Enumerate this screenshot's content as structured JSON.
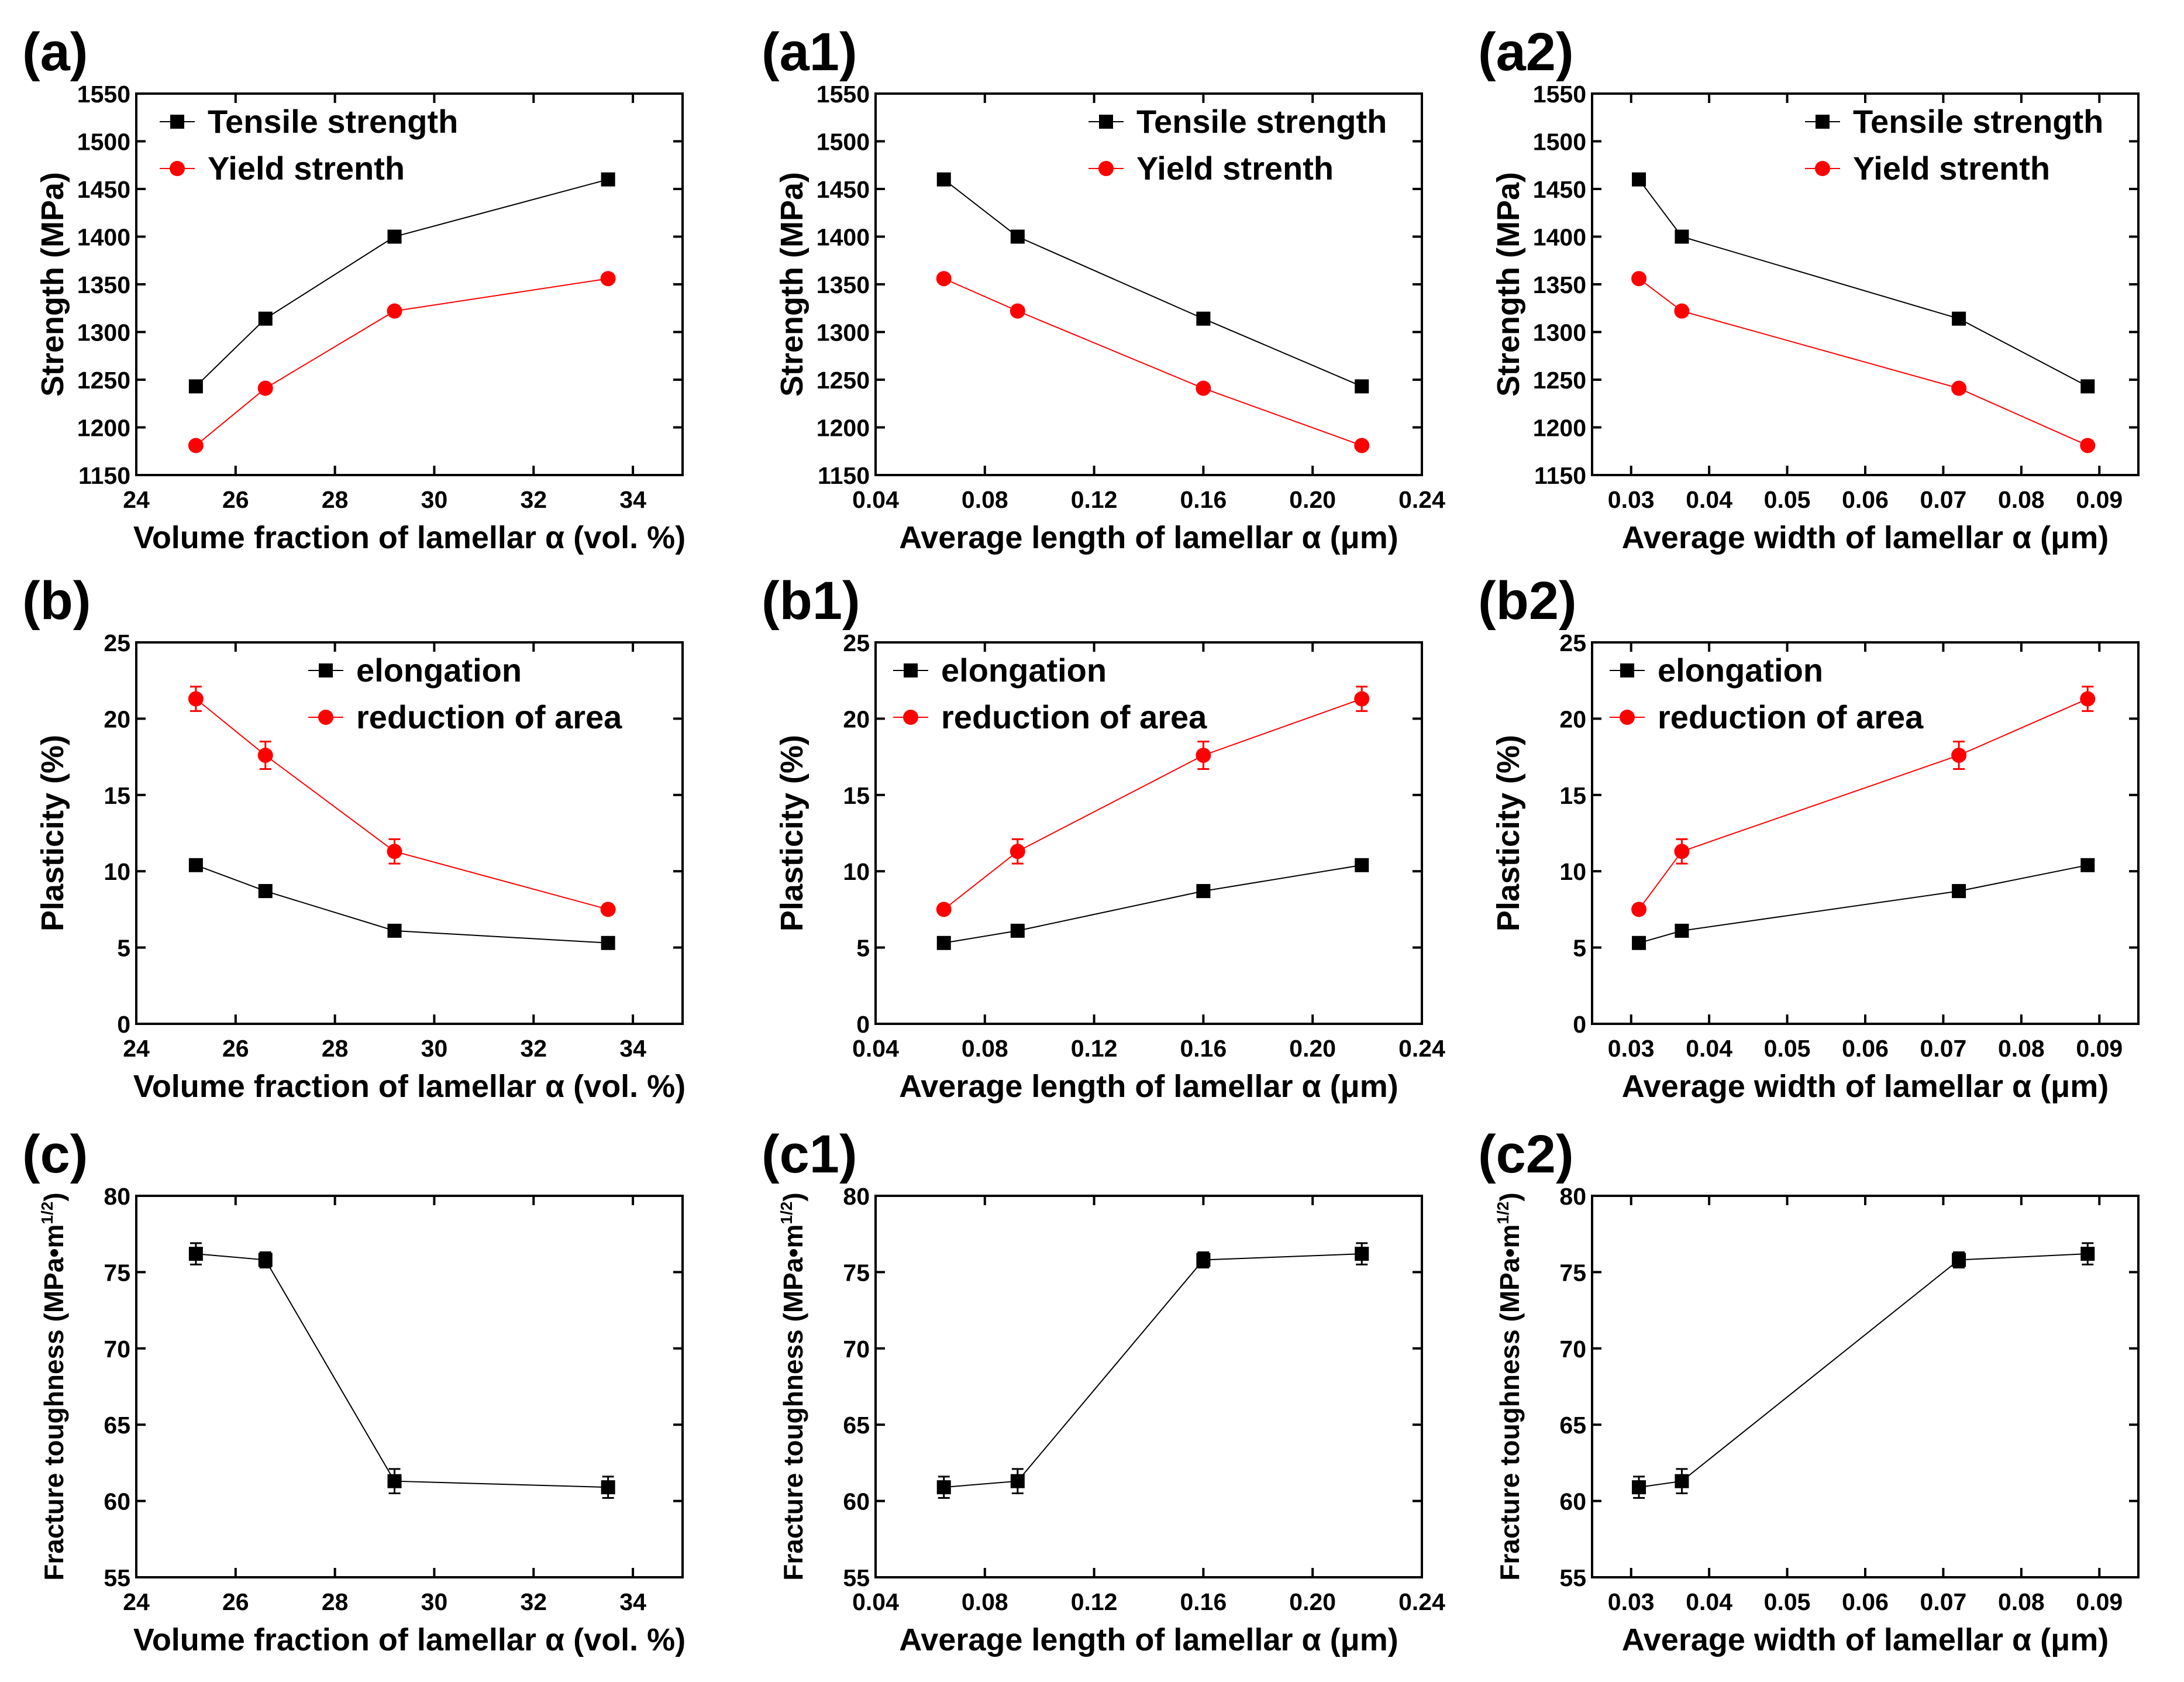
{
  "chart_data": [
    {
      "panel_label": "(a)",
      "type": "line",
      "xlabel": "Volume fraction of lamellar α (vol. %)",
      "ylabel": "Strength (MPa)",
      "xlim": [
        24,
        35
      ],
      "ylim": [
        1150,
        1550
      ],
      "xticks": [
        24,
        26,
        28,
        30,
        32,
        34
      ],
      "xtick_labels": [
        "24",
        "26",
        "28",
        "30",
        "32",
        "34"
      ],
      "yticks": [
        1150,
        1200,
        1250,
        1300,
        1350,
        1400,
        1450,
        1500,
        1550
      ],
      "ytick_labels": [
        "1150",
        "1200",
        "1250",
        "1300",
        "1350",
        "1400",
        "1450",
        "1500",
        "1550"
      ],
      "legend_position": "top-left",
      "series": [
        {
          "name": "Tensile strength",
          "marker": "square",
          "color": "#000000",
          "x": [
            25.2,
            26.6,
            29.2,
            33.5
          ],
          "y": [
            1243,
            1314,
            1400,
            1460
          ]
        },
        {
          "name": "Yield strenth",
          "marker": "circle",
          "color": "#ff0000",
          "x": [
            25.2,
            26.6,
            29.2,
            33.5
          ],
          "y": [
            1181,
            1241,
            1322,
            1356
          ]
        }
      ]
    },
    {
      "panel_label": "(a1)",
      "type": "line",
      "xlabel": "Average length of lamellar α (μm)",
      "ylabel": "Strength (MPa)",
      "xlim": [
        0.04,
        0.24
      ],
      "ylim": [
        1150,
        1550
      ],
      "xticks": [
        0.04,
        0.08,
        0.12,
        0.16,
        0.2,
        0.24
      ],
      "xtick_labels": [
        "0.04",
        "0.08",
        "0.12",
        "0.16",
        "0.20",
        "0.24"
      ],
      "yticks": [
        1150,
        1200,
        1250,
        1300,
        1350,
        1400,
        1450,
        1500,
        1550
      ],
      "ytick_labels": [
        "1150",
        "1200",
        "1250",
        "1300",
        "1350",
        "1400",
        "1450",
        "1500",
        "1550"
      ],
      "legend_position": "top-right",
      "series": [
        {
          "name": "Tensile strength",
          "marker": "square",
          "color": "#000000",
          "x": [
            0.065,
            0.092,
            0.16,
            0.218
          ],
          "y": [
            1460,
            1400,
            1314,
            1243
          ]
        },
        {
          "name": "Yield strenth",
          "marker": "circle",
          "color": "#ff0000",
          "x": [
            0.065,
            0.092,
            0.16,
            0.218
          ],
          "y": [
            1356,
            1322,
            1241,
            1181
          ]
        }
      ]
    },
    {
      "panel_label": "(a2)",
      "type": "line",
      "xlabel": "Average width of lamellar α (μm)",
      "ylabel": "Strength (MPa)",
      "xlim": [
        0.025,
        0.095
      ],
      "ylim": [
        1150,
        1550
      ],
      "xticks": [
        0.03,
        0.04,
        0.05,
        0.06,
        0.07,
        0.08,
        0.09
      ],
      "xtick_labels": [
        "0.03",
        "0.04",
        "0.05",
        "0.06",
        "0.07",
        "0.08",
        "0.09"
      ],
      "yticks": [
        1150,
        1200,
        1250,
        1300,
        1350,
        1400,
        1450,
        1500,
        1550
      ],
      "ytick_labels": [
        "1150",
        "1200",
        "1250",
        "1300",
        "1350",
        "1400",
        "1450",
        "1500",
        "1550"
      ],
      "legend_position": "top-right",
      "series": [
        {
          "name": "Tensile strength",
          "marker": "square",
          "color": "#000000",
          "x": [
            0.031,
            0.0365,
            0.072,
            0.0885
          ],
          "y": [
            1460,
            1400,
            1314,
            1243
          ]
        },
        {
          "name": "Yield strenth",
          "marker": "circle",
          "color": "#ff0000",
          "x": [
            0.031,
            0.0365,
            0.072,
            0.0885
          ],
          "y": [
            1356,
            1322,
            1241,
            1181
          ]
        }
      ]
    },
    {
      "panel_label": "(b)",
      "type": "line",
      "xlabel": "Volume fraction of lamellar α (vol. %)",
      "ylabel": "Plasticity (%)",
      "xlim": [
        24,
        35
      ],
      "ylim": [
        0,
        25
      ],
      "xticks": [
        24,
        26,
        28,
        30,
        32,
        34
      ],
      "xtick_labels": [
        "24",
        "26",
        "28",
        "30",
        "32",
        "34"
      ],
      "yticks": [
        0,
        5,
        10,
        15,
        20,
        25
      ],
      "ytick_labels": [
        "0",
        "5",
        "10",
        "15",
        "20",
        "25"
      ],
      "legend_position": "top-right",
      "series": [
        {
          "name": "elongation",
          "marker": "square",
          "color": "#000000",
          "x": [
            25.2,
            26.6,
            29.2,
            33.5
          ],
          "y": [
            10.4,
            8.7,
            6.1,
            5.3
          ],
          "err": [
            0.2,
            0.4,
            0.3,
            0.2
          ]
        },
        {
          "name": "reduction of area",
          "marker": "circle",
          "color": "#ff0000",
          "x": [
            25.2,
            26.6,
            29.2,
            33.5
          ],
          "y": [
            21.3,
            17.6,
            11.3,
            7.5
          ],
          "err": [
            0.8,
            0.9,
            0.8,
            0.2
          ]
        }
      ]
    },
    {
      "panel_label": "(b1)",
      "type": "line",
      "xlabel": "Average length of lamellar α (μm)",
      "ylabel": "Plasticity (%)",
      "xlim": [
        0.04,
        0.24
      ],
      "ylim": [
        0,
        25
      ],
      "xticks": [
        0.04,
        0.08,
        0.12,
        0.16,
        0.2,
        0.24
      ],
      "xtick_labels": [
        "0.04",
        "0.08",
        "0.12",
        "0.16",
        "0.20",
        "0.24"
      ],
      "yticks": [
        0,
        5,
        10,
        15,
        20,
        25
      ],
      "ytick_labels": [
        "0",
        "5",
        "10",
        "15",
        "20",
        "25"
      ],
      "legend_position": "top-left",
      "series": [
        {
          "name": "elongation",
          "marker": "square",
          "color": "#000000",
          "x": [
            0.065,
            0.092,
            0.16,
            0.218
          ],
          "y": [
            5.3,
            6.1,
            8.7,
            10.4
          ],
          "err": [
            0.2,
            0.3,
            0.4,
            0.2
          ]
        },
        {
          "name": "reduction of area",
          "marker": "circle",
          "color": "#ff0000",
          "x": [
            0.065,
            0.092,
            0.16,
            0.218
          ],
          "y": [
            7.5,
            11.3,
            17.6,
            21.3
          ],
          "err": [
            0.2,
            0.8,
            0.9,
            0.8
          ]
        }
      ]
    },
    {
      "panel_label": "(b2)",
      "type": "line",
      "xlabel": "Average width of lamellar α (μm)",
      "ylabel": "Plasticity (%)",
      "xlim": [
        0.025,
        0.095
      ],
      "ylim": [
        0,
        25
      ],
      "xticks": [
        0.03,
        0.04,
        0.05,
        0.06,
        0.07,
        0.08,
        0.09
      ],
      "xtick_labels": [
        "0.03",
        "0.04",
        "0.05",
        "0.06",
        "0.07",
        "0.08",
        "0.09"
      ],
      "yticks": [
        0,
        5,
        10,
        15,
        20,
        25
      ],
      "ytick_labels": [
        "0",
        "5",
        "10",
        "15",
        "20",
        "25"
      ],
      "legend_position": "top-left",
      "series": [
        {
          "name": "elongation",
          "marker": "square",
          "color": "#000000",
          "x": [
            0.031,
            0.0365,
            0.072,
            0.0885
          ],
          "y": [
            5.3,
            6.1,
            8.7,
            10.4
          ],
          "err": [
            0.2,
            0.3,
            0.4,
            0.2
          ]
        },
        {
          "name": "reduction of area",
          "marker": "circle",
          "color": "#ff0000",
          "x": [
            0.031,
            0.0365,
            0.072,
            0.0885
          ],
          "y": [
            7.5,
            11.3,
            17.6,
            21.3
          ],
          "err": [
            0.2,
            0.8,
            0.9,
            0.8
          ]
        }
      ]
    },
    {
      "panel_label": "(c)",
      "type": "line",
      "xlabel": "Volume fraction of lamellar α (vol. %)",
      "ylabel": "Fracture toughness (MPa•m",
      "ylabel_sup": "1/2",
      "ylabel_tail": ")",
      "xlim": [
        24,
        35
      ],
      "ylim": [
        55,
        80
      ],
      "xticks": [
        24,
        26,
        28,
        30,
        32,
        34
      ],
      "xtick_labels": [
        "24",
        "26",
        "28",
        "30",
        "32",
        "34"
      ],
      "yticks": [
        55,
        60,
        65,
        70,
        75,
        80
      ],
      "ytick_labels": [
        "55",
        "60",
        "65",
        "70",
        "75",
        "80"
      ],
      "legend_position": "none",
      "series": [
        {
          "name": "Fracture toughness",
          "marker": "square",
          "color": "#000000",
          "x": [
            25.2,
            26.6,
            29.2,
            33.5
          ],
          "y": [
            76.2,
            75.8,
            61.3,
            60.9
          ],
          "err": [
            0.7,
            0.5,
            0.8,
            0.7
          ]
        }
      ]
    },
    {
      "panel_label": "(c1)",
      "type": "line",
      "xlabel": "Average length of lamellar α (μm)",
      "ylabel": "Fracture toughness (MPa•m",
      "ylabel_sup": "1/2",
      "ylabel_tail": ")",
      "xlim": [
        0.04,
        0.24
      ],
      "ylim": [
        55,
        80
      ],
      "xticks": [
        0.04,
        0.08,
        0.12,
        0.16,
        0.2,
        0.24
      ],
      "xtick_labels": [
        "0.04",
        "0.08",
        "0.12",
        "0.16",
        "0.20",
        "0.24"
      ],
      "yticks": [
        55,
        60,
        65,
        70,
        75,
        80
      ],
      "ytick_labels": [
        "55",
        "60",
        "65",
        "70",
        "75",
        "80"
      ],
      "legend_position": "none",
      "series": [
        {
          "name": "Fracture toughness",
          "marker": "square",
          "color": "#000000",
          "x": [
            0.065,
            0.092,
            0.16,
            0.218
          ],
          "y": [
            60.9,
            61.3,
            75.8,
            76.2
          ],
          "err": [
            0.7,
            0.8,
            0.5,
            0.7
          ]
        }
      ]
    },
    {
      "panel_label": "(c2)",
      "type": "line",
      "xlabel": "Average width of lamellar α (μm)",
      "ylabel": "Fracture toughness (MPa•m",
      "ylabel_sup": "1/2",
      "ylabel_tail": ")",
      "xlim": [
        0.025,
        0.095
      ],
      "ylim": [
        55,
        80
      ],
      "xticks": [
        0.03,
        0.04,
        0.05,
        0.06,
        0.07,
        0.08,
        0.09
      ],
      "xtick_labels": [
        "0.03",
        "0.04",
        "0.05",
        "0.06",
        "0.07",
        "0.08",
        "0.09"
      ],
      "yticks": [
        55,
        60,
        65,
        70,
        75,
        80
      ],
      "ytick_labels": [
        "55",
        "60",
        "65",
        "70",
        "75",
        "80"
      ],
      "legend_position": "none",
      "series": [
        {
          "name": "Fracture toughness",
          "marker": "square",
          "color": "#000000",
          "x": [
            0.031,
            0.0365,
            0.072,
            0.0885
          ],
          "y": [
            60.9,
            61.3,
            75.8,
            76.2
          ],
          "err": [
            0.7,
            0.8,
            0.5,
            0.7
          ]
        }
      ]
    }
  ]
}
